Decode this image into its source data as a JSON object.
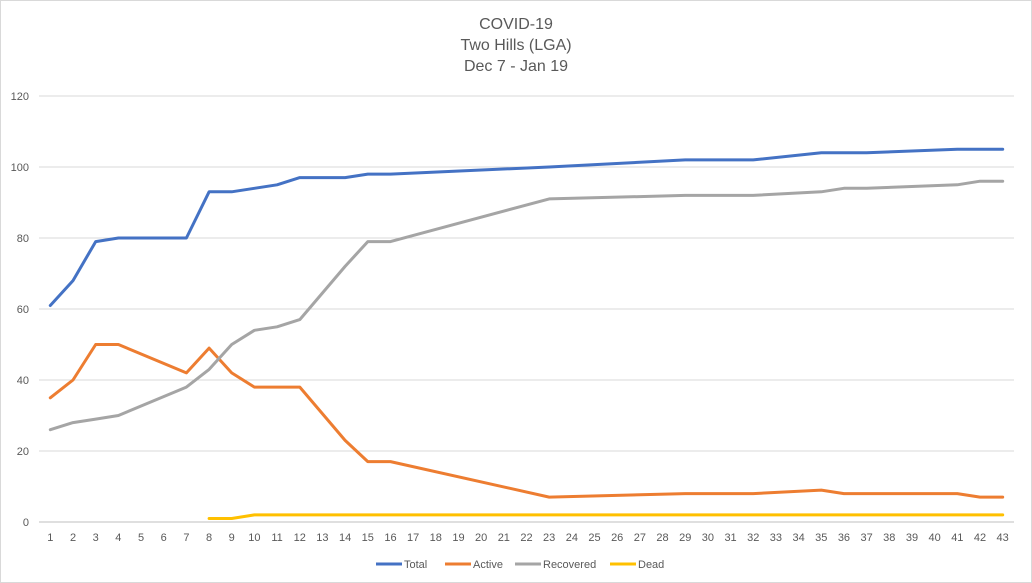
{
  "chart_data": {
    "type": "line",
    "title": [
      "COVID-19",
      "Two Hills (LGA)",
      "Dec 7 - Jan 19"
    ],
    "xlabel": "",
    "ylabel": "",
    "ylim": [
      0,
      120
    ],
    "yticks": [
      0,
      20,
      40,
      60,
      80,
      100,
      120
    ],
    "categories": [
      "1",
      "2",
      "3",
      "4",
      "5",
      "6",
      "7",
      "8",
      "9",
      "10",
      "11",
      "12",
      "13",
      "14",
      "15",
      "16",
      "17",
      "18",
      "19",
      "20",
      "21",
      "22",
      "23",
      "24",
      "25",
      "26",
      "27",
      "28",
      "29",
      "30",
      "31",
      "32",
      "33",
      "34",
      "35",
      "36",
      "37",
      "38",
      "39",
      "40",
      "41",
      "42",
      "43"
    ],
    "grid": true,
    "legend_position": "bottom",
    "series": [
      {
        "name": "Total",
        "color": "#4472c4",
        "values": [
          61,
          68,
          79,
          80,
          80,
          80,
          80,
          93,
          93,
          94,
          95,
          97,
          97,
          97,
          98,
          98,
          null,
          null,
          null,
          null,
          null,
          null,
          100,
          null,
          null,
          null,
          null,
          null,
          102,
          null,
          null,
          102,
          null,
          null,
          104,
          104,
          104,
          null,
          null,
          null,
          105,
          105,
          105
        ]
      },
      {
        "name": "Active",
        "color": "#ed7d31",
        "values": [
          35,
          40,
          50,
          50,
          null,
          null,
          42,
          49,
          42,
          38,
          38,
          38,
          null,
          23,
          17,
          17,
          null,
          null,
          null,
          null,
          null,
          null,
          7,
          null,
          null,
          null,
          null,
          null,
          8,
          null,
          null,
          8,
          null,
          null,
          9,
          8,
          8,
          null,
          null,
          null,
          8,
          7,
          7
        ]
      },
      {
        "name": "Recovered",
        "color": "#a5a5a5",
        "values": [
          26,
          28,
          29,
          30,
          null,
          null,
          38,
          43,
          50,
          54,
          55,
          57,
          null,
          72,
          79,
          79,
          null,
          null,
          null,
          null,
          null,
          null,
          91,
          null,
          null,
          null,
          null,
          null,
          92,
          null,
          null,
          92,
          null,
          null,
          93,
          94,
          94,
          null,
          null,
          null,
          95,
          96,
          96
        ]
      },
      {
        "name": "Dead",
        "color": "#ffc000",
        "values": [
          null,
          null,
          null,
          null,
          null,
          null,
          null,
          1,
          1,
          2,
          2,
          2,
          2,
          2,
          2,
          2,
          2,
          2,
          2,
          2,
          2,
          2,
          2,
          2,
          2,
          2,
          2,
          2,
          2,
          2,
          2,
          2,
          2,
          2,
          2,
          2,
          2,
          2,
          2,
          2,
          2,
          2,
          2
        ]
      }
    ]
  }
}
